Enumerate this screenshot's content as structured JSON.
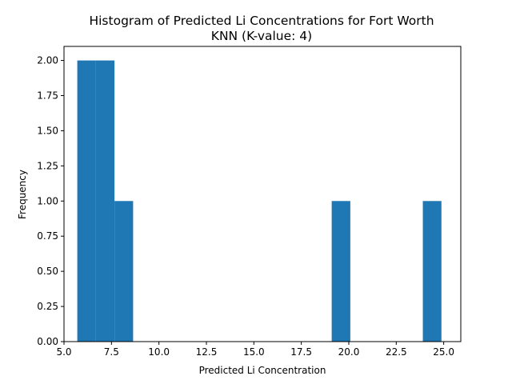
{
  "chart_data": {
    "type": "bar",
    "title_lines": [
      "Histogram of Predicted Li Concentrations for Fort Worth",
      "KNN (K-value: 4)"
    ],
    "xlabel": "Predicted Li Concentration",
    "ylabel": "Frequency",
    "xlim": [
      5.0,
      25.9
    ],
    "ylim": [
      0,
      2.1
    ],
    "xticks": [
      5.0,
      7.5,
      10.0,
      12.5,
      15.0,
      17.5,
      20.0,
      22.5,
      25.0
    ],
    "xtick_labels": [
      "5.0",
      "7.5",
      "10.0",
      "12.5",
      "15.0",
      "17.5",
      "20.0",
      "22.5",
      "25.0"
    ],
    "yticks": [
      0,
      0.25,
      0.5,
      0.75,
      1.0,
      1.25,
      1.5,
      1.75,
      2.0
    ],
    "ytick_labels": [
      "0.00",
      "0.25",
      "0.50",
      "0.75",
      "1.00",
      "1.25",
      "1.50",
      "1.75",
      "2.00"
    ],
    "bins": [
      {
        "start": 5.7,
        "end": 6.68,
        "value": 2
      },
      {
        "start": 6.68,
        "end": 7.66,
        "value": 2
      },
      {
        "start": 7.66,
        "end": 8.64,
        "value": 1
      },
      {
        "start": 19.1,
        "end": 20.08,
        "value": 1
      },
      {
        "start": 23.9,
        "end": 24.88,
        "value": 1
      }
    ],
    "bar_color": "#1f77b4",
    "grid": false
  }
}
